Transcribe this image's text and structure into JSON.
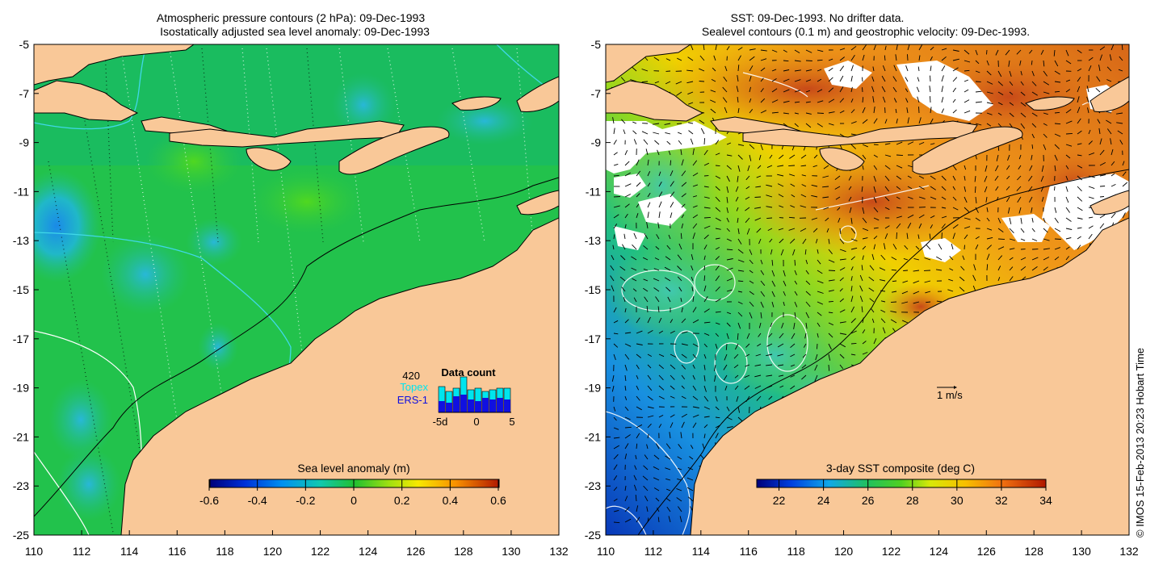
{
  "left_panel": {
    "title_line1": "Atmospheric pressure contours (2 hPa): 09-Dec-1993",
    "title_line2": "Isostatically adjusted sea level anomaly: 09-Dec-1993",
    "x_ticks": [
      "110",
      "112",
      "114",
      "116",
      "118",
      "120",
      "122",
      "124",
      "126",
      "128",
      "130",
      "132"
    ],
    "y_ticks": [
      "-5",
      "-7",
      "-9",
      "-11",
      "-13",
      "-15",
      "-17",
      "-19",
      "-21",
      "-23",
      "-25"
    ],
    "colorbar": {
      "title": "Sea level anomaly (m)",
      "ticks": [
        "-0.6",
        "-0.4",
        "-0.2",
        "0",
        "0.2",
        "0.4",
        "0.6"
      ]
    },
    "data_count": {
      "title": "Data count",
      "total": "420",
      "legend_topex": "Topex",
      "legend_ers": "ERS-1",
      "x_label_left": "-5d",
      "x_label_mid": "0",
      "x_label_right": "5",
      "topex_color": "#00e5ee",
      "ers_color": "#1010e0"
    }
  },
  "right_panel": {
    "title_line1": "SST: 09-Dec-1993. No drifter data.",
    "title_line2": "Sealevel contours (0.1 m) and geostrophic velocity: 09-Dec-1993.",
    "x_ticks": [
      "110",
      "112",
      "114",
      "116",
      "118",
      "120",
      "122",
      "124",
      "126",
      "128",
      "130",
      "132"
    ],
    "y_ticks": [
      "-5",
      "-7",
      "-9",
      "-11",
      "-13",
      "-15",
      "-17",
      "-19",
      "-21",
      "-23",
      "-25"
    ],
    "velocity_scale_label": "1 m/s",
    "colorbar": {
      "title": "3-day SST composite (deg C)",
      "ticks": [
        "22",
        "24",
        "26",
        "28",
        "30",
        "32",
        "34"
      ]
    }
  },
  "credit": "© IMOS 15-Feb-2013 20:23 Hobart Time",
  "colors": {
    "land": "#f9c898",
    "ocean_green": "#1cc24a",
    "sst_orange": "#ee8a10",
    "sst_blue": "#1870d8",
    "coastline": "#000000",
    "cyan_contour": "#40d8e8"
  }
}
